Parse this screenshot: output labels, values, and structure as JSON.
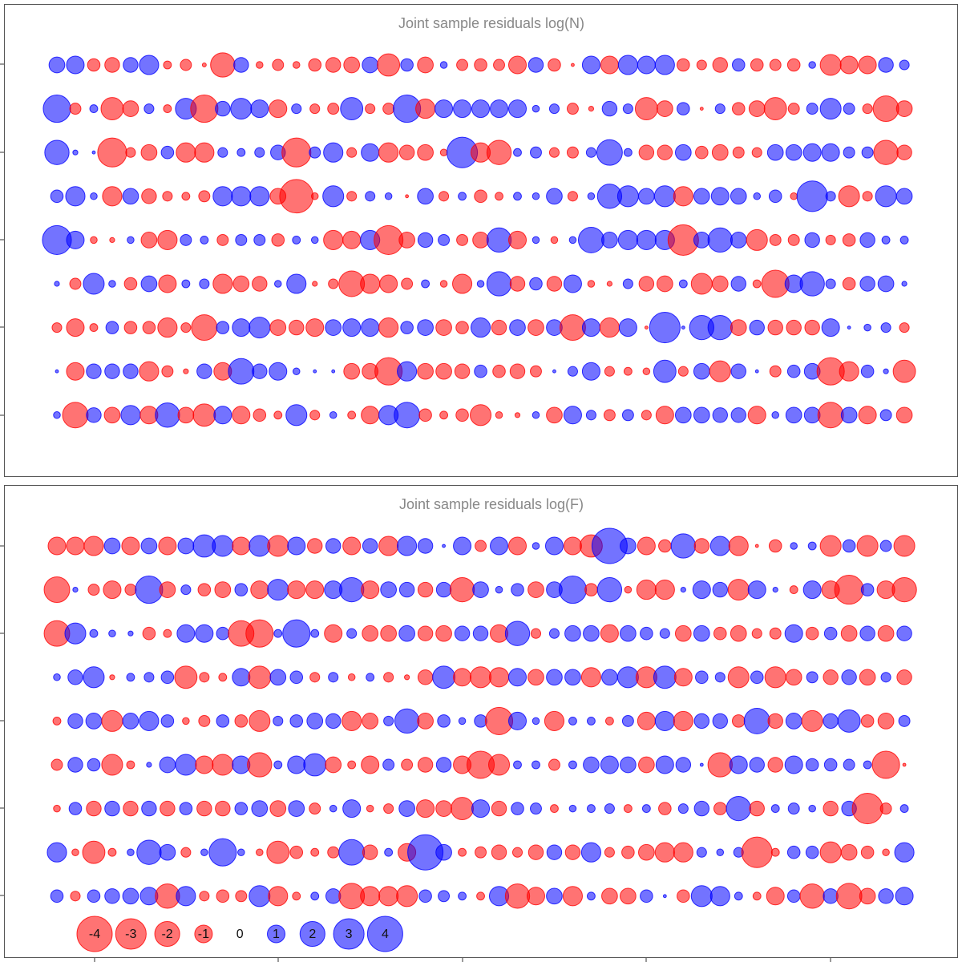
{
  "chart_data": [
    {
      "type": "bubble",
      "title": "Joint sample residuals log(N)",
      "negative_color": "#ff0000",
      "positive_color": "#0000ff",
      "rows": [
        [
          0.8,
          1.0,
          -0.5,
          -0.7,
          0.7,
          1.2,
          -0.2,
          -0.4,
          -0.05,
          -1.9,
          0.7,
          -0.15,
          -0.4,
          -0.15,
          -0.5,
          -0.7,
          -0.8,
          0.8,
          -1.6,
          0.5,
          -0.8,
          0.15,
          -0.4,
          -0.5,
          -0.4,
          -1.0,
          0.7,
          -0.5,
          -0.03,
          1.0,
          -1.0,
          1.2,
          1.0,
          1.2,
          -0.5,
          -0.3,
          -0.7,
          0.5,
          -0.5,
          -0.4,
          -0.5,
          0.15,
          -1.4,
          -1.0,
          -1.0,
          0.7,
          0.3
        ],
        [
          2.4,
          -0.4,
          0.2,
          -1.6,
          -0.8,
          0.3,
          -0.2,
          1.4,
          -2.4,
          0.7,
          1.4,
          1.0,
          -1.0,
          0.3,
          -0.3,
          -0.4,
          1.6,
          -0.3,
          -0.4,
          2.4,
          -1.2,
          1.0,
          1.0,
          1.0,
          1.0,
          1.0,
          0.15,
          0.3,
          -0.4,
          -0.08,
          0.7,
          0.3,
          -1.6,
          -0.8,
          0.5,
          -0.03,
          0.3,
          -0.5,
          -0.8,
          -1.6,
          -0.4,
          0.4,
          1.4,
          0.4,
          -0.3,
          -2.1,
          -0.8
        ],
        [
          1.9,
          0.08,
          0.03,
          -2.7,
          -0.3,
          -0.8,
          0.5,
          -1.2,
          -1.2,
          0.3,
          0.2,
          0.3,
          0.7,
          -2.7,
          0.4,
          1.2,
          -0.3,
          1.0,
          -1.2,
          -0.7,
          -0.8,
          -0.15,
          3.0,
          -1.2,
          -1.9,
          0.2,
          0.4,
          -0.3,
          -0.4,
          0.3,
          2.1,
          0.2,
          -0.7,
          -0.7,
          0.8,
          -0.5,
          -0.8,
          -0.4,
          -0.3,
          0.8,
          0.8,
          1.0,
          1.0,
          0.4,
          0.4,
          -1.9,
          -0.7
        ],
        [
          0.5,
          1.2,
          0.15,
          -1.2,
          0.8,
          -0.7,
          -0.3,
          -0.2,
          -0.4,
          1.2,
          1.2,
          1.2,
          -0.8,
          -3.6,
          -0.15,
          1.4,
          -0.3,
          0.3,
          0.15,
          -0.03,
          0.8,
          -0.3,
          0.2,
          -0.5,
          -0.2,
          0.2,
          0.15,
          0.8,
          -0.3,
          0.15,
          1.9,
          1.4,
          0.8,
          1.4,
          -1.2,
          0.8,
          1.0,
          0.8,
          0.15,
          0.5,
          -0.15,
          3.0,
          0.3,
          -1.4,
          -0.3,
          1.4,
          0.8
        ],
        [
          2.7,
          1.0,
          -0.15,
          -0.08,
          0.15,
          -0.8,
          -1.2,
          0.4,
          0.2,
          -0.4,
          0.4,
          0.4,
          -0.5,
          0.2,
          0.15,
          -1.2,
          -1.0,
          1.2,
          -2.7,
          -0.8,
          0.7,
          0.4,
          -0.4,
          -0.8,
          1.9,
          -1.0,
          0.15,
          -0.15,
          0.15,
          2.1,
          0.8,
          1.2,
          1.2,
          1.2,
          -3.0,
          0.8,
          1.9,
          0.8,
          -1.4,
          -0.4,
          -0.4,
          0.7,
          -0.3,
          -0.5,
          0.7,
          0.2,
          0.2
        ],
        [
          0.08,
          -0.4,
          1.4,
          0.15,
          -0.5,
          0.8,
          -1.0,
          0.2,
          0.3,
          -1.2,
          -0.8,
          -0.7,
          0.15,
          1.2,
          -0.08,
          -0.3,
          -2.1,
          -1.2,
          -1.0,
          -0.4,
          0.2,
          -0.15,
          -1.2,
          0.15,
          1.9,
          -0.7,
          0.5,
          -0.7,
          1.0,
          -0.15,
          -0.08,
          0.3,
          -0.7,
          -0.8,
          0.2,
          -1.4,
          -0.8,
          0.7,
          -0.2,
          -2.4,
          1.0,
          1.9,
          0.3,
          -0.5,
          0.7,
          0.8,
          0.08
        ],
        [
          -0.3,
          -1.0,
          -0.2,
          0.5,
          -0.5,
          -0.5,
          -1.2,
          -0.3,
          -2.1,
          0.5,
          1.0,
          1.4,
          -0.8,
          -0.7,
          -1.0,
          0.8,
          1.0,
          1.0,
          -1.2,
          0.5,
          0.8,
          -0.8,
          -0.5,
          1.2,
          -0.7,
          0.8,
          -0.8,
          0.8,
          -2.1,
          1.0,
          -1.2,
          1.0,
          -0.03,
          3.0,
          0.03,
          1.9,
          1.9,
          -0.8,
          0.7,
          -0.7,
          -0.7,
          -0.7,
          1.0,
          0.03,
          0.15,
          0.3,
          -0.3
        ],
        [
          0.03,
          -1.0,
          0.7,
          0.7,
          0.7,
          -1.2,
          -0.4,
          -0.08,
          0.7,
          -1.0,
          2.1,
          0.7,
          1.0,
          0.15,
          0.03,
          0.03,
          -0.8,
          -0.8,
          -2.4,
          1.2,
          -0.8,
          -0.8,
          -0.7,
          0.5,
          -0.5,
          -0.7,
          -0.4,
          0.03,
          0.3,
          1.0,
          -0.3,
          -0.2,
          -0.15,
          1.6,
          -0.3,
          0.8,
          -1.4,
          0.7,
          0.03,
          -0.4,
          0.5,
          0.8,
          -2.4,
          -1.2,
          0.5,
          0.08,
          -1.6
        ],
        [
          0.15,
          -2.1,
          0.7,
          -0.8,
          1.2,
          -1.0,
          1.9,
          -0.8,
          -1.6,
          1.0,
          -1.0,
          -0.5,
          -0.2,
          1.4,
          -0.3,
          0.15,
          -0.2,
          -1.0,
          1.2,
          2.1,
          -0.5,
          -0.2,
          -0.5,
          -1.4,
          -0.15,
          -0.08,
          0.15,
          -0.8,
          1.0,
          0.3,
          -0.4,
          0.4,
          -0.3,
          -1.0,
          0.8,
          0.8,
          0.7,
          0.7,
          -1.0,
          0.15,
          0.8,
          0.8,
          -2.1,
          0.8,
          -1.0,
          0.4,
          -0.8
        ]
      ]
    },
    {
      "type": "bubble",
      "title": "Joint sample residuals log(F)",
      "negative_color": "#ff0000",
      "positive_color": "#0000ff",
      "rows": [
        [
          -1.0,
          -1.0,
          -1.2,
          0.8,
          -1.0,
          0.8,
          -1.0,
          0.8,
          1.6,
          1.4,
          -1.0,
          1.4,
          -1.4,
          1.0,
          -0.7,
          0.7,
          -1.0,
          0.7,
          -1.2,
          1.2,
          0.7,
          0.03,
          1.0,
          -0.4,
          1.0,
          -1.0,
          0.15,
          1.0,
          -1.0,
          -1.6,
          4.0,
          0.8,
          -1.0,
          -0.5,
          1.9,
          -0.7,
          1.2,
          -1.2,
          -0.03,
          -0.5,
          0.15,
          0.2,
          -1.4,
          0.5,
          -1.4,
          0.4,
          -1.4
        ],
        [
          -2.1,
          0.08,
          -0.4,
          -1.0,
          -0.4,
          2.4,
          -0.8,
          0.3,
          -0.5,
          -0.8,
          0.5,
          -1.0,
          1.4,
          -1.0,
          -1.0,
          1.0,
          1.9,
          -1.0,
          0.8,
          0.7,
          -0.7,
          0.7,
          -1.9,
          0.8,
          0.15,
          0.5,
          -0.8,
          0.8,
          2.4,
          -0.5,
          1.9,
          -0.15,
          -1.2,
          -1.2,
          0.08,
          1.0,
          0.7,
          -1.4,
          1.0,
          0.08,
          -0.2,
          1.0,
          -1.0,
          -2.7,
          0.5,
          -1.0,
          -1.9
        ],
        [
          -2.1,
          1.4,
          0.2,
          0.15,
          0.08,
          -0.5,
          -0.2,
          1.0,
          1.0,
          0.5,
          -2.1,
          -2.4,
          0.2,
          2.4,
          0.2,
          -1.0,
          0.3,
          -0.8,
          -0.8,
          0.8,
          -0.7,
          -0.8,
          0.7,
          0.7,
          -1.0,
          1.9,
          -0.3,
          0.3,
          0.8,
          0.8,
          -1.0,
          0.8,
          0.5,
          0.3,
          -0.8,
          0.8,
          -0.5,
          -0.8,
          -0.3,
          -0.4,
          1.0,
          -0.5,
          0.5,
          -0.8,
          0.7,
          -0.8,
          0.7
        ],
        [
          0.15,
          0.7,
          1.4,
          -0.08,
          0.2,
          0.3,
          0.5,
          -1.6,
          -0.3,
          -0.2,
          1.0,
          -1.6,
          0.8,
          0.5,
          -0.3,
          0.3,
          -0.15,
          0.2,
          -0.3,
          -0.08,
          -0.7,
          1.6,
          -1.0,
          -1.4,
          -1.2,
          1.0,
          -0.8,
          0.8,
          0.8,
          -1.2,
          0.8,
          1.4,
          -1.4,
          1.6,
          -1.0,
          0.5,
          0.3,
          -1.4,
          0.5,
          -1.4,
          -0.8,
          0.4,
          -0.7,
          0.7,
          -0.8,
          0.3,
          -0.7
        ],
        [
          -0.2,
          0.7,
          0.8,
          -1.4,
          0.8,
          1.2,
          0.5,
          -0.15,
          -0.4,
          0.5,
          -0.5,
          -1.4,
          0.3,
          0.5,
          0.8,
          0.7,
          -1.2,
          -0.8,
          0.3,
          1.9,
          -0.8,
          0.5,
          0.15,
          0.5,
          -2.4,
          1.0,
          0.15,
          -1.2,
          0.2,
          0.2,
          -0.2,
          0.4,
          -1.0,
          1.2,
          -1.2,
          0.7,
          0.7,
          -0.5,
          2.1,
          -0.7,
          0.8,
          -1.4,
          0.7,
          1.6,
          -0.5,
          -0.8,
          0.4
        ],
        [
          -0.4,
          0.7,
          0.5,
          -1.4,
          -0.2,
          0.08,
          0.8,
          1.4,
          -1.0,
          -1.4,
          1.0,
          -1.9,
          0.2,
          1.0,
          1.6,
          -0.8,
          -0.2,
          -1.0,
          0.4,
          -0.4,
          -0.7,
          0.7,
          -1.0,
          -2.4,
          -1.4,
          0.2,
          0.2,
          -0.4,
          0.2,
          0.8,
          1.0,
          0.8,
          -0.8,
          1.0,
          0.7,
          0.03,
          -1.9,
          1.0,
          0.7,
          -0.7,
          1.0,
          0.5,
          0.5,
          0.4,
          0.2,
          -2.4,
          -0.03
        ],
        [
          -0.15,
          0.5,
          -0.7,
          0.7,
          -0.7,
          0.7,
          -0.7,
          0.5,
          -0.7,
          -0.7,
          0.5,
          0.8,
          -0.8,
          0.8,
          -0.4,
          0.15,
          1.0,
          -0.15,
          -0.3,
          0.8,
          -1.0,
          -0.8,
          -1.6,
          1.0,
          -0.7,
          0.5,
          0.4,
          -0.2,
          0.15,
          0.2,
          0.3,
          -0.2,
          0.2,
          -0.5,
          0.3,
          0.7,
          -0.5,
          1.9,
          -0.7,
          0.2,
          0.4,
          0.15,
          -0.7,
          0.7,
          -3.0,
          -0.4,
          0.2
        ],
        [
          1.2,
          -0.15,
          -1.6,
          -0.2,
          0.15,
          1.9,
          0.8,
          -0.3,
          0.15,
          2.4,
          0.15,
          -0.15,
          -1.6,
          -0.5,
          -0.2,
          -0.4,
          2.1,
          -0.7,
          0.2,
          -1.0,
          4.0,
          0.8,
          -0.2,
          -0.4,
          -0.7,
          -0.3,
          -0.7,
          0.7,
          -0.7,
          1.2,
          -0.3,
          -0.5,
          -0.8,
          -1.2,
          -1.2,
          0.3,
          0.15,
          0.3,
          -3.0,
          -0.2,
          0.5,
          0.5,
          -1.4,
          -0.8,
          -0.5,
          -0.15,
          1.2
        ],
        [
          0.5,
          -0.3,
          0.5,
          0.7,
          0.8,
          1.0,
          -1.9,
          1.2,
          -0.3,
          -0.5,
          -0.4,
          1.4,
          -1.2,
          -0.2,
          0.2,
          0.7,
          -2.1,
          -1.2,
          -1.2,
          -1.4,
          0.5,
          0.4,
          0.2,
          -0.2,
          1.2,
          -1.9,
          -1.0,
          0.8,
          -1.2,
          0.2,
          -0.8,
          -0.8,
          0.5,
          0.03,
          -0.5,
          1.4,
          1.2,
          0.2,
          -0.2,
          -1.0,
          0.5,
          -1.9,
          0.7,
          -2.1,
          -0.8,
          0.7,
          1.0
        ]
      ],
      "legend_values": [
        -4,
        -3,
        -2,
        -1,
        0,
        1,
        2,
        3,
        4
      ]
    }
  ]
}
